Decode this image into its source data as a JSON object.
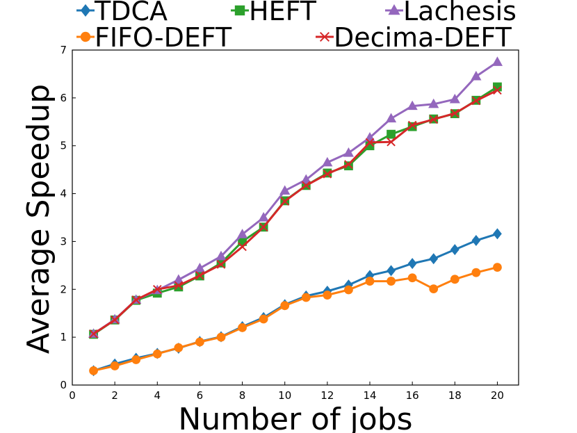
{
  "chart_data": {
    "type": "line",
    "xlabel": "Number of jobs",
    "ylabel": "Average Speedup",
    "xlim": [
      0,
      21
    ],
    "ylim": [
      0,
      7
    ],
    "xticks": [
      0,
      2,
      4,
      6,
      8,
      10,
      12,
      14,
      16,
      18,
      20
    ],
    "yticks": [
      0,
      1,
      2,
      3,
      4,
      5,
      6,
      7
    ],
    "grid": false,
    "legend_placement": "top, outside plot area",
    "x": [
      1,
      2,
      3,
      4,
      5,
      6,
      7,
      8,
      9,
      10,
      11,
      12,
      13,
      14,
      15,
      16,
      17,
      18,
      19,
      20
    ],
    "series": [
      {
        "name": "TDCA",
        "color": "#1f77b4",
        "marker": "diamond",
        "values": [
          0.3,
          0.44,
          0.56,
          0.66,
          0.77,
          0.91,
          1.01,
          1.22,
          1.41,
          1.68,
          1.86,
          1.96,
          2.09,
          2.29,
          2.39,
          2.54,
          2.64,
          2.83,
          3.02,
          3.16
        ]
      },
      {
        "name": "HEFT",
        "color": "#2ca02c",
        "marker": "square",
        "values": [
          1.06,
          1.36,
          1.77,
          1.92,
          2.05,
          2.28,
          2.55,
          3.0,
          3.3,
          3.85,
          4.17,
          4.43,
          4.58,
          5.0,
          5.24,
          5.4,
          5.56,
          5.67,
          5.95,
          6.23
        ]
      },
      {
        "name": "Lachesis",
        "color": "#9467bd",
        "marker": "triangle",
        "values": [
          1.07,
          1.37,
          1.78,
          1.98,
          2.2,
          2.44,
          2.69,
          3.15,
          3.5,
          4.06,
          4.29,
          4.65,
          4.85,
          5.17,
          5.57,
          5.83,
          5.87,
          5.97,
          6.45,
          6.75
        ]
      },
      {
        "name": "FIFO-DEFT",
        "color": "#ff7f0e",
        "marker": "circle",
        "values": [
          0.3,
          0.4,
          0.53,
          0.65,
          0.78,
          0.9,
          1.0,
          1.2,
          1.38,
          1.66,
          1.83,
          1.88,
          1.99,
          2.17,
          2.17,
          2.24,
          2.01,
          2.21,
          2.35,
          2.46
        ]
      },
      {
        "name": "Decima-DEFT",
        "color": "#d62728",
        "marker": "x",
        "values": [
          1.07,
          1.36,
          1.78,
          2.0,
          2.08,
          2.29,
          2.52,
          2.89,
          3.3,
          3.84,
          4.17,
          4.41,
          4.61,
          5.07,
          5.08,
          5.43,
          5.55,
          5.68,
          5.94,
          6.16
        ]
      }
    ],
    "legend_order": [
      "TDCA",
      "HEFT",
      "Lachesis",
      "FIFO-DEFT",
      "Decima-DEFT"
    ]
  }
}
